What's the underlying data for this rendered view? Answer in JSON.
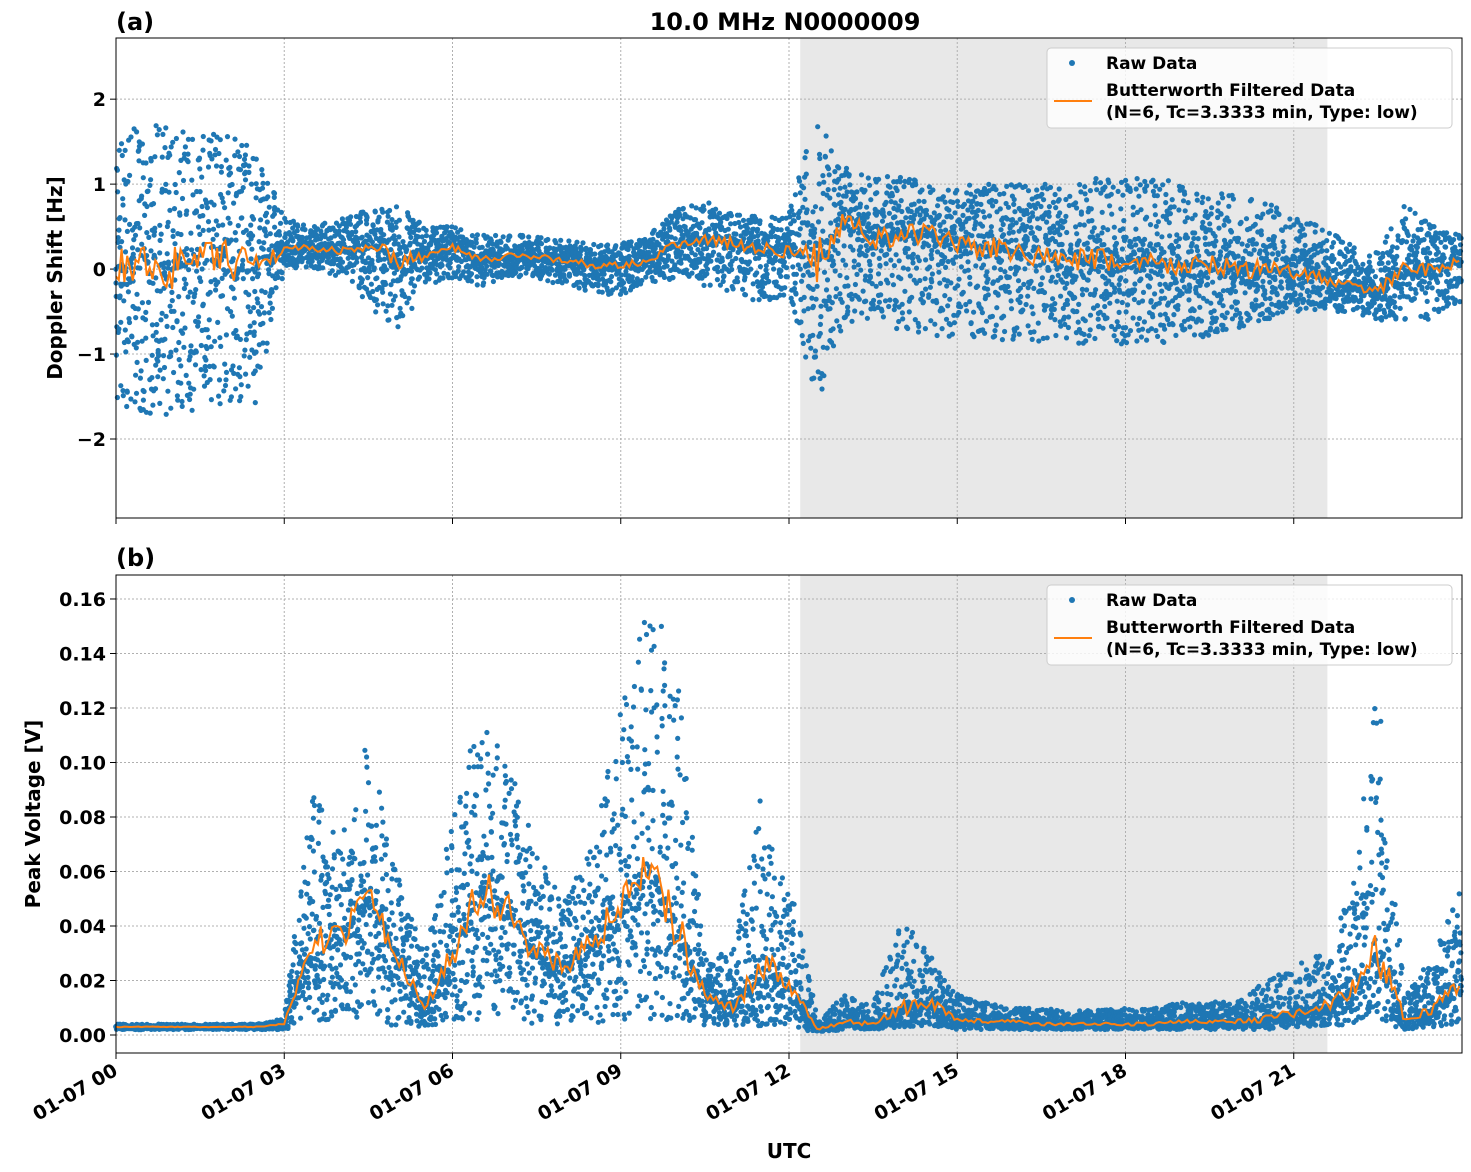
{
  "chart_data": [
    {
      "type": "scatter",
      "panel_label": "(a)",
      "title": "10.0 MHz N0000009",
      "ylabel": "Doppler Shift [Hz]",
      "xlabel": "",
      "x_unit": "hours UTC on 01-07",
      "xlim": [
        0,
        24
      ],
      "ylim": [
        -2.93,
        2.72
      ],
      "yticks": [
        -2,
        -1,
        0,
        1,
        2
      ],
      "ytick_labels": [
        "−2",
        "−1",
        "0",
        "1",
        "2"
      ],
      "xticks": [
        0,
        3,
        6,
        9,
        12,
        15,
        18,
        21
      ],
      "grid": true,
      "legend_placement": "top-right",
      "shaded_interval": [
        12.2,
        21.6
      ],
      "shade_color": "#e8e8e8",
      "legend": [
        "Raw Data",
        "Butterworth Filtered Data",
        "(N=6, Tc=3.3333 min, Type: low)"
      ],
      "colors": {
        "raw": "#1f77b4",
        "filtered": "#ff7f0e"
      },
      "times": [
        0,
        0.5,
        1,
        1.5,
        2,
        2.5,
        3,
        3.5,
        4,
        4.5,
        5,
        5.5,
        6,
        6.5,
        7,
        7.5,
        8,
        8.5,
        9,
        9.5,
        10,
        10.5,
        11,
        11.5,
        12,
        12.5,
        13,
        13.5,
        14,
        14.5,
        15,
        15.5,
        16,
        16.5,
        17,
        17.5,
        18,
        18.5,
        19,
        19.5,
        20,
        20.5,
        21,
        21.5,
        22,
        22.5,
        23,
        23.5,
        24
      ],
      "series": [
        {
          "name": "Butterworth Filtered Data",
          "kind": "line",
          "values": [
            0,
            0.1,
            0,
            0.1,
            0.1,
            0,
            0.25,
            0.25,
            0.2,
            0.3,
            0.1,
            0.15,
            0.25,
            0.1,
            0.15,
            0.15,
            0.1,
            0.05,
            0.05,
            0.1,
            0.3,
            0.35,
            0.3,
            0.25,
            0.2,
            0.1,
            0.6,
            0.35,
            0.4,
            0.4,
            0.3,
            0.25,
            0.2,
            0.15,
            0.1,
            0.1,
            0.1,
            0.05,
            0.05,
            0.05,
            0,
            0,
            -0.05,
            -0.1,
            -0.2,
            -0.25,
            0,
            0,
            0.1
          ]
        },
        {
          "name": "Raw Data",
          "kind": "scatter-envelope",
          "upper": [
            1.6,
            1.7,
            1.7,
            1.6,
            1.6,
            1.5,
            0.6,
            0.5,
            0.6,
            0.7,
            0.8,
            0.5,
            0.5,
            0.4,
            0.4,
            0.4,
            0.35,
            0.3,
            0.3,
            0.4,
            0.7,
            0.8,
            0.7,
            0.6,
            0.7,
            1.8,
            1.2,
            1.1,
            1.1,
            1.1,
            1.0,
            1.0,
            1.0,
            1.0,
            1.0,
            1.1,
            1.1,
            1.1,
            1.0,
            0.9,
            0.9,
            0.8,
            0.6,
            0.5,
            0.3,
            0.2,
            0.8,
            0.5,
            0.4
          ],
          "lower": [
            -1.7,
            -1.8,
            -1.7,
            -1.7,
            -1.6,
            -1.6,
            0,
            0,
            -0.1,
            -0.4,
            -0.8,
            -0.2,
            -0.1,
            -0.2,
            -0.1,
            -0.1,
            -0.2,
            -0.3,
            -0.3,
            -0.2,
            -0.1,
            -0.2,
            -0.3,
            -0.4,
            -0.3,
            -1.6,
            -0.6,
            -0.7,
            -0.7,
            -0.8,
            -0.8,
            -0.8,
            -0.9,
            -0.9,
            -0.9,
            -0.9,
            -0.9,
            -0.9,
            -0.8,
            -0.8,
            -0.7,
            -0.6,
            -0.5,
            -0.5,
            -0.5,
            -0.6,
            -0.6,
            -0.6,
            -0.4
          ]
        }
      ]
    },
    {
      "type": "scatter",
      "panel_label": "(b)",
      "ylabel": "Peak Voltage [V]",
      "xlabel": "UTC",
      "x_unit": "hours UTC on 01-07",
      "xlim": [
        0,
        24
      ],
      "ylim": [
        -0.0066,
        0.1688
      ],
      "yticks": [
        0,
        0.02,
        0.04,
        0.06,
        0.08,
        0.1,
        0.12,
        0.14,
        0.16
      ],
      "ytick_labels": [
        "0.00",
        "0.02",
        "0.04",
        "0.06",
        "0.08",
        "0.10",
        "0.12",
        "0.14",
        "0.16"
      ],
      "xticks": [
        0,
        3,
        6,
        9,
        12,
        15,
        18,
        21
      ],
      "xtick_labels": [
        "01-07 00",
        "01-07 03",
        "01-07 06",
        "01-07 09",
        "01-07 12",
        "01-07 15",
        "01-07 18",
        "01-07 21"
      ],
      "grid": true,
      "legend_placement": "top-right",
      "shaded_interval": [
        12.2,
        21.6
      ],
      "legend": [
        "Raw Data",
        "Butterworth Filtered Data",
        "(N=6, Tc=3.3333 min, Type: low)"
      ],
      "times": [
        0,
        0.5,
        1,
        1.5,
        2,
        2.5,
        3,
        3.5,
        4,
        4.5,
        5,
        5.5,
        6,
        6.5,
        7,
        7.5,
        8,
        8.5,
        9,
        9.5,
        10,
        10.5,
        11,
        11.5,
        12,
        12.5,
        13,
        13.5,
        14,
        14.5,
        15,
        15.5,
        16,
        16.5,
        17,
        17.5,
        18,
        18.5,
        19,
        19.5,
        20,
        20.5,
        21,
        21.5,
        22,
        22.5,
        23,
        23.5,
        24
      ],
      "series": [
        {
          "name": "Butterworth Filtered Data",
          "kind": "line",
          "values": [
            0.003,
            0.003,
            0.003,
            0.003,
            0.003,
            0.003,
            0.004,
            0.035,
            0.035,
            0.05,
            0.03,
            0.01,
            0.03,
            0.055,
            0.045,
            0.03,
            0.025,
            0.035,
            0.045,
            0.06,
            0.04,
            0.015,
            0.01,
            0.025,
            0.02,
            0.002,
            0.005,
            0.004,
            0.01,
            0.012,
            0.006,
            0.005,
            0.005,
            0.004,
            0.004,
            0.004,
            0.004,
            0.004,
            0.005,
            0.005,
            0.005,
            0.006,
            0.008,
            0.01,
            0.015,
            0.03,
            0.005,
            0.01,
            0.02
          ]
        },
        {
          "name": "Raw Data",
          "kind": "scatter-envelope",
          "upper": [
            0.004,
            0.004,
            0.004,
            0.004,
            0.004,
            0.004,
            0.006,
            0.09,
            0.07,
            0.11,
            0.06,
            0.03,
            0.08,
            0.12,
            0.1,
            0.07,
            0.05,
            0.07,
            0.12,
            0.16,
            0.14,
            0.03,
            0.03,
            0.09,
            0.06,
            0.006,
            0.015,
            0.012,
            0.045,
            0.03,
            0.015,
            0.012,
            0.01,
            0.01,
            0.009,
            0.009,
            0.01,
            0.01,
            0.012,
            0.012,
            0.013,
            0.02,
            0.025,
            0.03,
            0.05,
            0.13,
            0.015,
            0.03,
            0.055
          ],
          "lower": [
            0.002,
            0.002,
            0.002,
            0.002,
            0.002,
            0.002,
            0.002,
            0.005,
            0.005,
            0.005,
            0.003,
            0.003,
            0.004,
            0.005,
            0.005,
            0.004,
            0.004,
            0.004,
            0.005,
            0.006,
            0.005,
            0.003,
            0.003,
            0.003,
            0.003,
            0.001,
            0.002,
            0.002,
            0.003,
            0.003,
            0.002,
            0.002,
            0.002,
            0.002,
            0.002,
            0.002,
            0.002,
            0.002,
            0.002,
            0.002,
            0.002,
            0.002,
            0.003,
            0.003,
            0.004,
            0.004,
            0.002,
            0.003,
            0.004
          ]
        }
      ]
    }
  ]
}
